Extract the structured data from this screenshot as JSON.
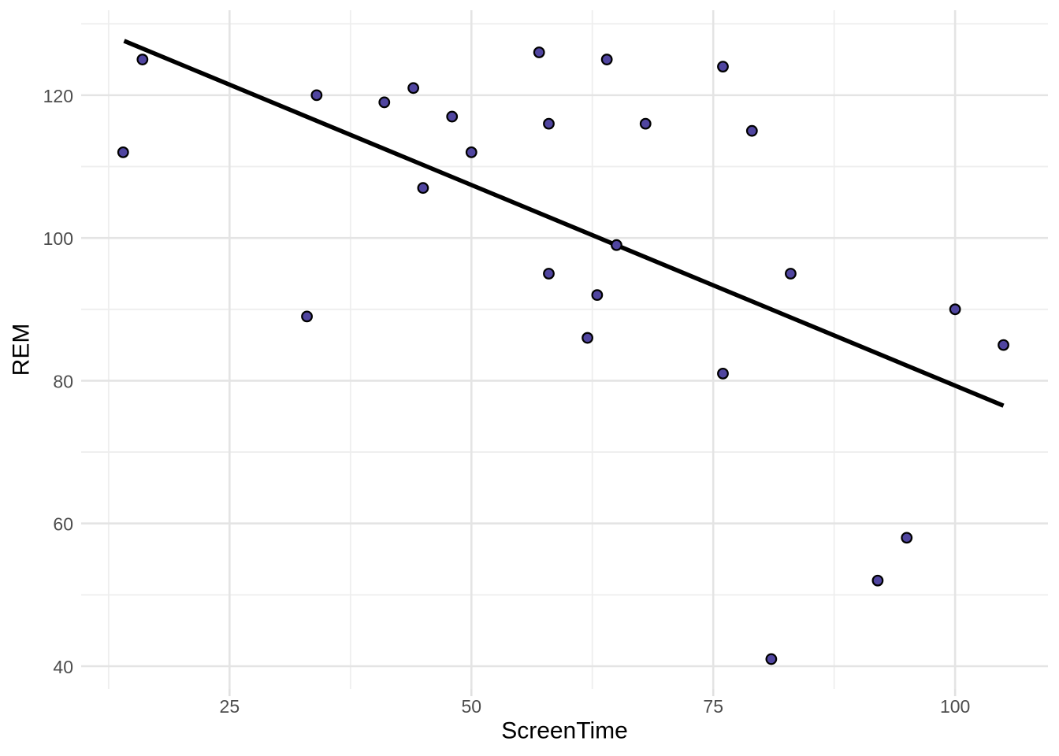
{
  "figure": {
    "background": "#ffffff"
  },
  "chart_data": {
    "type": "scatter",
    "title": "",
    "xlabel": "ScreenTime",
    "ylabel": "REM",
    "x_ticks": [
      25,
      50,
      75,
      100
    ],
    "x_tick_labels": [
      "25",
      "50",
      "75",
      "100"
    ],
    "y_ticks": [
      40,
      60,
      80,
      100,
      120
    ],
    "y_tick_labels": [
      "40",
      "60",
      "80",
      "100",
      "120"
    ],
    "x_minor_ticks": [
      12.5,
      37.5,
      62.5,
      87.5
    ],
    "y_minor_ticks": [
      50,
      70,
      90,
      110,
      130
    ],
    "xlim": [
      10.8,
      109.6
    ],
    "ylim": [
      36.8,
      131.9
    ],
    "grid": "major and minor, light gray on white",
    "legend_position": "none",
    "points": [
      {
        "x": 14,
        "y": 112
      },
      {
        "x": 16,
        "y": 125
      },
      {
        "x": 33,
        "y": 89
      },
      {
        "x": 34,
        "y": 120
      },
      {
        "x": 41,
        "y": 119
      },
      {
        "x": 44,
        "y": 121
      },
      {
        "x": 45,
        "y": 107
      },
      {
        "x": 48,
        "y": 117
      },
      {
        "x": 50,
        "y": 112
      },
      {
        "x": 57,
        "y": 126
      },
      {
        "x": 58,
        "y": 116
      },
      {
        "x": 58,
        "y": 95
      },
      {
        "x": 62,
        "y": 86
      },
      {
        "x": 63,
        "y": 92
      },
      {
        "x": 64,
        "y": 125
      },
      {
        "x": 65,
        "y": 99
      },
      {
        "x": 68,
        "y": 116
      },
      {
        "x": 76,
        "y": 124
      },
      {
        "x": 76,
        "y": 81
      },
      {
        "x": 79,
        "y": 115
      },
      {
        "x": 81,
        "y": 41
      },
      {
        "x": 83,
        "y": 95
      },
      {
        "x": 92,
        "y": 52
      },
      {
        "x": 95,
        "y": 58
      },
      {
        "x": 100,
        "y": 90
      },
      {
        "x": 105,
        "y": 85
      }
    ],
    "trend_line": {
      "x1": 14.1,
      "y1": 127.6,
      "x2": 105.0,
      "y2": 76.5
    },
    "colors": {
      "point_fill": "#5045a0",
      "point_stroke": "#000000",
      "trend_line": "#000000",
      "grid_major": "#e4e4e4",
      "grid_minor": "#eeeeee",
      "tick_mark": "#e0e0e0",
      "tick_label": "#4d4d4d",
      "axis_title": "#000000",
      "background": "#ffffff"
    }
  }
}
